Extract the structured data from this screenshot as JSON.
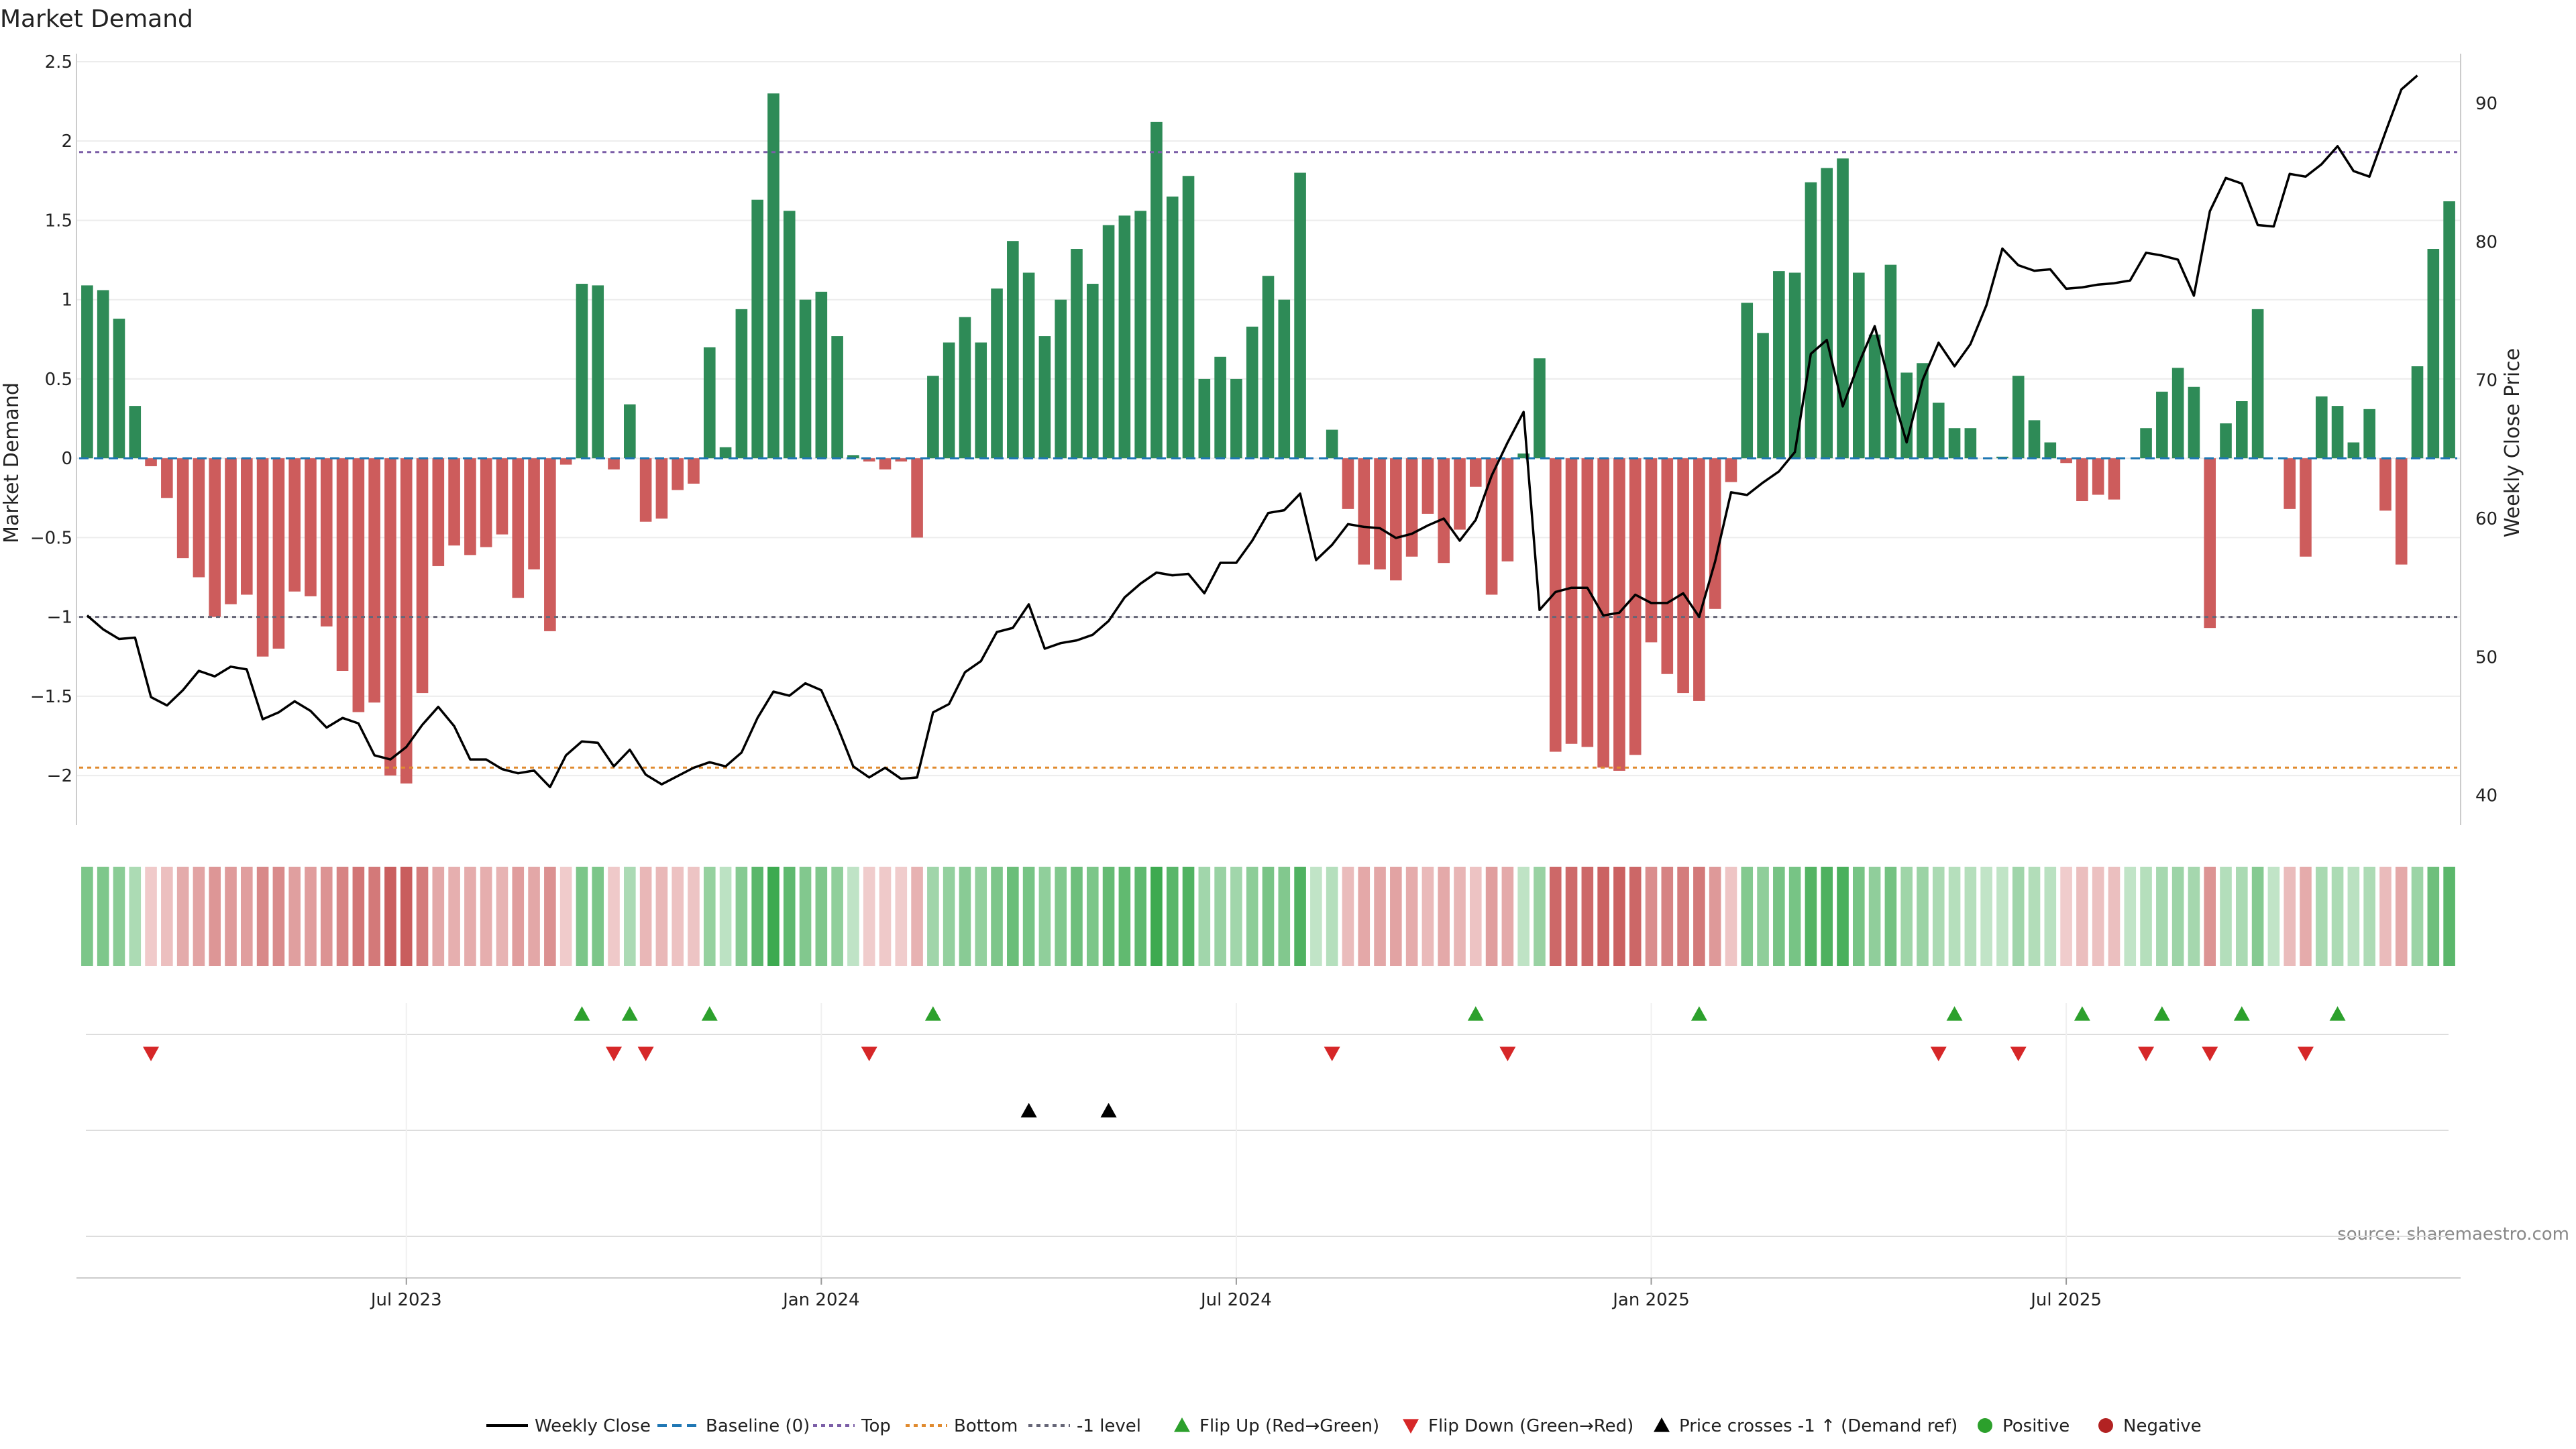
{
  "chart_data": {
    "type": "bar",
    "title": "Market Demand",
    "ylabel": "Market Demand",
    "y2label": "Weekly Close Price",
    "ylim": [
      -2.3,
      2.5
    ],
    "y2lim": [
      38,
      93
    ],
    "y_ticks": [
      "2.5",
      "2",
      "1.5",
      "1",
      "0.5",
      "0",
      "−0.5",
      "−1",
      "−1.5",
      "−2"
    ],
    "y2_ticks": [
      "90",
      "80",
      "70",
      "60",
      "50",
      "40"
    ],
    "x_tick_labels": [
      "Jul 2023",
      "Jan 2024",
      "Jul 2024",
      "Jan 2025",
      "Jul 2025"
    ],
    "x_tick_weeks": [
      20,
      46,
      72,
      98,
      124
    ],
    "levels": {
      "top": 1.93,
      "bottom": -1.95,
      "minus_one": -1.0
    },
    "grid": true,
    "legend_position": "bottom-center",
    "source_text": "source: sharemaestro.com",
    "legend": [
      {
        "key": "close",
        "label": "Weekly Close"
      },
      {
        "key": "baseline",
        "label": "Baseline (0)"
      },
      {
        "key": "top",
        "label": "Top"
      },
      {
        "key": "bottom",
        "label": "Bottom"
      },
      {
        "key": "minus1",
        "label": "-1 level"
      },
      {
        "key": "flipup",
        "label": "Flip Up (Red→Green)"
      },
      {
        "key": "flipdown",
        "label": "Flip Down (Green→Red)"
      },
      {
        "key": "cross",
        "label": "Price crosses -1 ↑ (Demand ref)"
      },
      {
        "key": "pos",
        "label": "Positive"
      },
      {
        "key": "neg",
        "label": "Negative"
      }
    ],
    "series": [
      {
        "name": "Market Demand",
        "values": [
          1.09,
          1.06,
          0.88,
          0.33,
          -0.05,
          -0.25,
          -0.63,
          -0.75,
          -1.0,
          -0.92,
          -0.86,
          -1.25,
          -1.2,
          -0.84,
          -0.87,
          -1.06,
          -1.34,
          -1.6,
          -1.54,
          -2.0,
          -2.05,
          -1.48,
          -0.68,
          -0.55,
          -0.61,
          -0.56,
          -0.48,
          -0.88,
          -0.7,
          -1.09,
          -0.04,
          1.1,
          1.09,
          -0.07,
          0.34,
          -0.4,
          -0.38,
          -0.2,
          -0.16,
          0.7,
          0.07,
          0.94,
          1.63,
          2.3,
          1.56,
          1.0,
          1.05,
          0.77,
          0.02,
          -0.02,
          -0.07,
          -0.02,
          -0.5,
          0.52,
          0.73,
          0.89,
          0.73,
          1.07,
          1.37,
          1.17,
          0.77,
          1.0,
          1.32,
          1.1,
          1.47,
          1.53,
          1.56,
          2.12,
          1.65,
          1.78,
          0.5,
          0.64,
          0.5,
          0.83,
          1.15,
          1.0,
          1.8,
          0.0,
          0.18,
          -0.32,
          -0.67,
          -0.7,
          -0.77,
          -0.62,
          -0.35,
          -0.66,
          -0.45,
          -0.18,
          -0.86,
          -0.65,
          0.03,
          0.63,
          -1.85,
          -1.8,
          -1.82,
          -1.95,
          -1.97,
          -1.87,
          -1.16,
          -1.36,
          -1.48,
          -1.53,
          -0.95,
          -0.15,
          0.98,
          0.79,
          1.18,
          1.17,
          1.74,
          1.83,
          1.89,
          1.17,
          0.78,
          1.22,
          0.54,
          0.6,
          0.35,
          0.19,
          0.19,
          0.0,
          0.01,
          0.52,
          0.24,
          0.1,
          -0.03,
          -0.27,
          -0.23,
          -0.26,
          0.0,
          0.19,
          0.42,
          0.57,
          0.45,
          -1.07,
          0.22,
          0.36,
          0.94,
          0.0,
          -0.32,
          -0.62,
          0.39,
          0.33,
          0.1,
          0.31,
          -0.33,
          -0.67,
          0.58,
          1.32,
          1.62
        ]
      },
      {
        "name": "Weekly Close",
        "values": [
          53.0,
          52.0,
          51.3,
          51.4,
          47.1,
          46.5,
          47.6,
          49.0,
          48.6,
          49.3,
          49.1,
          45.5,
          46.0,
          46.8,
          46.1,
          44.9,
          45.6,
          45.2,
          42.9,
          42.6,
          43.5,
          45.1,
          46.4,
          45.0,
          42.6,
          42.6,
          41.9,
          41.6,
          41.8,
          40.6,
          42.9,
          43.9,
          43.8,
          42.1,
          43.3,
          41.5,
          40.8,
          41.4,
          42.0,
          42.4,
          42.1,
          43.1,
          45.6,
          47.5,
          47.2,
          48.1,
          47.6,
          45.0,
          42.1,
          41.3,
          42.0,
          41.2,
          41.3,
          46.0,
          46.6,
          48.9,
          49.7,
          51.8,
          52.1,
          53.8,
          50.6,
          51.0,
          51.2,
          51.6,
          52.6,
          54.3,
          55.3,
          56.1,
          55.9,
          56.0,
          54.6,
          56.8,
          56.8,
          58.4,
          60.4,
          60.6,
          61.8,
          57.0,
          58.1,
          59.6,
          59.4,
          59.3,
          58.6,
          58.9,
          59.5,
          60.0,
          58.4,
          59.9,
          63.1,
          65.5,
          67.7,
          53.4,
          54.7,
          55.0,
          55.0,
          53.0,
          53.2,
          54.5,
          53.9,
          53.9,
          54.6,
          52.9,
          56.9,
          61.9,
          61.7,
          62.6,
          63.4,
          64.8,
          71.9,
          72.9,
          68.1,
          71.2,
          73.9,
          69.4,
          65.5,
          70.0,
          72.7,
          71.0,
          72.6,
          75.4,
          79.5,
          78.3,
          77.9,
          78.0,
          76.6,
          76.7,
          76.9,
          77.0,
          77.2,
          79.2,
          79.0,
          78.7,
          76.1,
          82.2,
          84.6,
          84.2,
          81.2,
          81.1,
          84.9,
          84.7,
          85.6,
          86.9,
          85.1,
          84.7,
          87.9,
          91.0,
          92.0
        ]
      }
    ],
    "flip_up_weeks": [
      31,
      34,
      39,
      53,
      87,
      101,
      117,
      125,
      130,
      135,
      141
    ],
    "flip_down_weeks": [
      4,
      33,
      35,
      49,
      78,
      89,
      116,
      121,
      129,
      133,
      139
    ],
    "cross_weeks": [
      59,
      64
    ],
    "colors": {
      "bar_pos": "#2e8b57",
      "bar_neg": "#cd5c5c",
      "close": "#000000",
      "baseline": "#1f77b4",
      "top": "#7b5ea7",
      "bottom": "#e08a2e",
      "minus1": "#666677",
      "flip_up": "#2ca02c",
      "flip_down": "#d62728",
      "cross": "#000000",
      "pos": "#2ca02c",
      "neg": "#b22222"
    }
  }
}
